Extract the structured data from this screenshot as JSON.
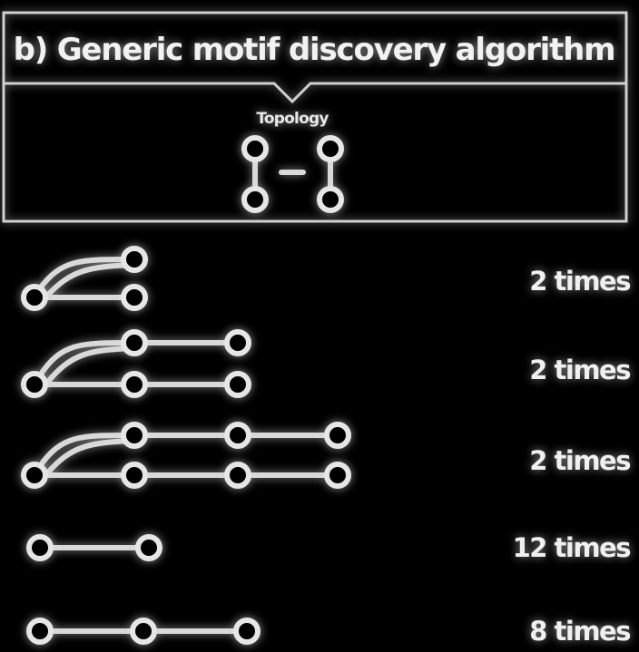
{
  "panel": {
    "title": "b) Generic motif discovery algorithm"
  },
  "topology": {
    "label": "Topology",
    "node_left_top_label": "",
    "node_right_top_label": "",
    "connector": "–"
  },
  "motifs": [
    {
      "shape": "triangle-2",
      "count_label": "2 times"
    },
    {
      "shape": "ladder-3",
      "count_label": "2 times"
    },
    {
      "shape": "ladder-4",
      "count_label": "2 times"
    },
    {
      "shape": "chain-2",
      "count_label": "12 times"
    },
    {
      "shape": "chain-3",
      "count_label": "8 times"
    }
  ],
  "colors": {
    "background": "#000000",
    "foreground": "#e6e6e6"
  }
}
